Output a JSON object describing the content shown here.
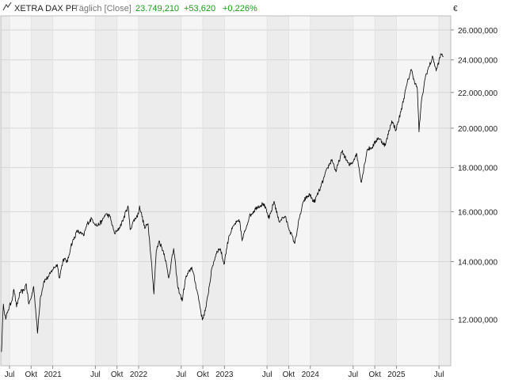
{
  "header": {
    "instrument": "XETRA DAX PF",
    "interval": "Täglich [Close]",
    "last": "23.749,210",
    "change_abs": "+53,620",
    "change_pct": "+0,226%",
    "positive_color": "#1a9b1a"
  },
  "chart_data": {
    "type": "line",
    "title": "XETRA DAX PF",
    "y_unit": "€",
    "y_scale": "log",
    "ylim": [
      10600,
      27000
    ],
    "y_ticks": [
      12000,
      14000,
      16000,
      18000,
      20000,
      22000,
      24000,
      26000
    ],
    "y_tick_labels": [
      "12.000,000",
      "14.000,000",
      "16.000,000",
      "18.000,000",
      "20.000,000",
      "22.000,000",
      "24.000,000",
      "26.000,000"
    ],
    "xlim": [
      "2020-05-25",
      "2025-08-20"
    ],
    "x_ticks": [
      {
        "date": "2020-07-01",
        "label": "Jul"
      },
      {
        "date": "2020-10-01",
        "label": "Okt"
      },
      {
        "date": "2021-01-01",
        "label": "2021"
      },
      {
        "date": "2021-07-01",
        "label": "Jul"
      },
      {
        "date": "2021-10-01",
        "label": "Okt"
      },
      {
        "date": "2022-01-01",
        "label": "2022"
      },
      {
        "date": "2022-07-01",
        "label": "Jul"
      },
      {
        "date": "2022-10-01",
        "label": "Okt"
      },
      {
        "date": "2023-01-01",
        "label": "2023"
      },
      {
        "date": "2023-07-01",
        "label": "Jul"
      },
      {
        "date": "2023-10-01",
        "label": "Okt"
      },
      {
        "date": "2024-01-01",
        "label": "2024"
      },
      {
        "date": "2024-07-01",
        "label": "Jul"
      },
      {
        "date": "2024-10-01",
        "label": "Okt"
      },
      {
        "date": "2025-01-01",
        "label": "2025"
      },
      {
        "date": "2025-07-01",
        "label": "Jul"
      }
    ],
    "grid": true,
    "series": [
      {
        "name": "XETRA DAX PF",
        "color": "#000000",
        "points": [
          [
            "2020-05-28",
            11000
          ],
          [
            "2020-06-05",
            12500
          ],
          [
            "2020-06-15",
            12000
          ],
          [
            "2020-06-25",
            12300
          ],
          [
            "2020-07-10",
            12600
          ],
          [
            "2020-07-20",
            13000
          ],
          [
            "2020-07-31",
            12400
          ],
          [
            "2020-08-15",
            12900
          ],
          [
            "2020-08-31",
            12950
          ],
          [
            "2020-09-10",
            13200
          ],
          [
            "2020-09-21",
            12500
          ],
          [
            "2020-10-01",
            12700
          ],
          [
            "2020-10-12",
            13100
          ],
          [
            "2020-10-28",
            11560
          ],
          [
            "2020-11-09",
            12700
          ],
          [
            "2020-11-25",
            13300
          ],
          [
            "2020-12-15",
            13450
          ],
          [
            "2020-12-30",
            13700
          ],
          [
            "2021-01-20",
            13900
          ],
          [
            "2021-01-29",
            13400
          ],
          [
            "2021-02-15",
            14100
          ],
          [
            "2021-03-05",
            14000
          ],
          [
            "2021-03-19",
            14600
          ],
          [
            "2021-04-15",
            15200
          ],
          [
            "2021-05-12",
            15000
          ],
          [
            "2021-05-28",
            15500
          ],
          [
            "2021-06-15",
            15700
          ],
          [
            "2021-07-08",
            15400
          ],
          [
            "2021-07-30",
            15600
          ],
          [
            "2021-08-13",
            15900
          ],
          [
            "2021-09-01",
            15800
          ],
          [
            "2021-09-20",
            15100
          ],
          [
            "2021-10-04",
            15200
          ],
          [
            "2021-10-25",
            15600
          ],
          [
            "2021-11-17",
            16250
          ],
          [
            "2021-11-26",
            15250
          ],
          [
            "2021-12-10",
            15600
          ],
          [
            "2021-12-31",
            15900
          ],
          [
            "2022-01-05",
            16250
          ],
          [
            "2022-01-27",
            15300
          ],
          [
            "2022-02-10",
            15500
          ],
          [
            "2022-02-24",
            14050
          ],
          [
            "2022-03-07",
            12840
          ],
          [
            "2022-03-17",
            14400
          ],
          [
            "2022-03-29",
            14800
          ],
          [
            "2022-04-20",
            14300
          ],
          [
            "2022-05-09",
            13400
          ],
          [
            "2022-05-30",
            14500
          ],
          [
            "2022-06-16",
            13100
          ],
          [
            "2022-07-05",
            12600
          ],
          [
            "2022-07-20",
            13400
          ],
          [
            "2022-08-15",
            13800
          ],
          [
            "2022-09-08",
            12900
          ],
          [
            "2022-09-29",
            11980
          ],
          [
            "2022-10-15",
            12400
          ],
          [
            "2022-11-10",
            13800
          ],
          [
            "2022-11-30",
            14400
          ],
          [
            "2022-12-14",
            14500
          ],
          [
            "2022-12-30",
            13900
          ],
          [
            "2023-01-20",
            15000
          ],
          [
            "2023-02-15",
            15500
          ],
          [
            "2023-03-07",
            15600
          ],
          [
            "2023-03-17",
            14800
          ],
          [
            "2023-04-17",
            15800
          ],
          [
            "2023-05-19",
            16200
          ],
          [
            "2023-06-16",
            16350
          ],
          [
            "2023-07-10",
            15700
          ],
          [
            "2023-07-31",
            16450
          ],
          [
            "2023-08-20",
            15600
          ],
          [
            "2023-09-15",
            15800
          ],
          [
            "2023-10-06",
            15200
          ],
          [
            "2023-10-27",
            14700
          ],
          [
            "2023-11-15",
            15700
          ],
          [
            "2023-12-05",
            16500
          ],
          [
            "2023-12-29",
            16750
          ],
          [
            "2024-01-17",
            16400
          ],
          [
            "2024-02-15",
            17100
          ],
          [
            "2024-03-15",
            18000
          ],
          [
            "2024-04-02",
            18400
          ],
          [
            "2024-04-19",
            17800
          ],
          [
            "2024-05-15",
            18800
          ],
          [
            "2024-06-14",
            18100
          ],
          [
            "2024-07-01",
            18300
          ],
          [
            "2024-07-15",
            18700
          ],
          [
            "2024-08-05",
            17300
          ],
          [
            "2024-08-30",
            18900
          ],
          [
            "2024-09-20",
            19000
          ],
          [
            "2024-10-15",
            19500
          ],
          [
            "2024-11-15",
            19100
          ],
          [
            "2024-12-12",
            20400
          ],
          [
            "2024-12-30",
            19900
          ],
          [
            "2025-01-20",
            20900
          ],
          [
            "2025-02-15",
            22500
          ],
          [
            "2025-03-05",
            23400
          ],
          [
            "2025-03-18",
            22700
          ],
          [
            "2025-03-31",
            22200
          ],
          [
            "2025-04-07",
            19800
          ],
          [
            "2025-04-16",
            21300
          ],
          [
            "2025-05-05",
            23000
          ],
          [
            "2025-06-05",
            24200
          ],
          [
            "2025-06-19",
            23300
          ],
          [
            "2025-07-10",
            24400
          ],
          [
            "2025-07-20",
            24200
          ]
        ]
      }
    ]
  }
}
